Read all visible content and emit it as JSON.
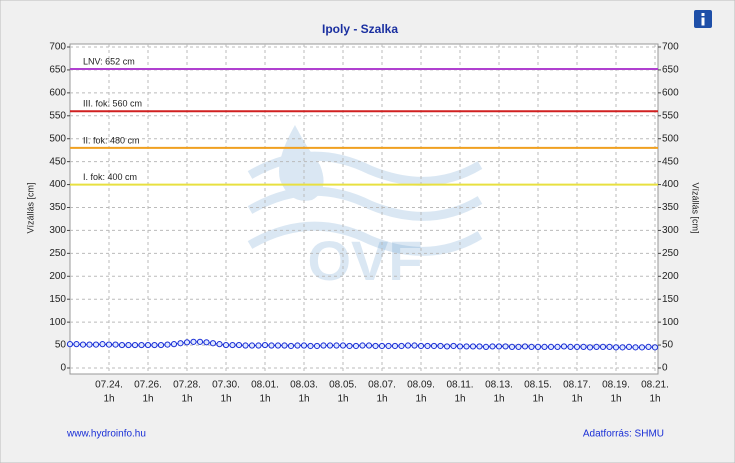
{
  "chart_data": {
    "type": "line",
    "title": "Ipoly - Szalka",
    "y_label": "Vízállás [cm]",
    "categories": [
      null,
      null,
      null,
      null,
      null,
      null,
      "07.24.",
      null,
      null,
      null,
      null,
      null,
      "07.26.",
      null,
      null,
      null,
      null,
      null,
      "07.28.",
      null,
      null,
      null,
      null,
      null,
      "07.30.",
      null,
      null,
      null,
      null,
      null,
      "08.01.",
      null,
      null,
      null,
      null,
      null,
      "08.03.",
      null,
      null,
      null,
      null,
      null,
      "08.05.",
      null,
      null,
      null,
      null,
      null,
      "08.07.",
      null,
      null,
      null,
      null,
      null,
      "08.09.",
      null,
      null,
      null,
      null,
      null,
      "08.11.",
      null,
      null,
      null,
      null,
      null,
      "08.13.",
      null,
      null,
      null,
      null,
      null,
      "08.15.",
      null,
      null,
      null,
      null,
      null,
      "08.17.",
      null,
      null,
      null,
      null,
      null,
      "08.19.",
      null,
      null,
      null,
      null,
      null,
      "08.21."
    ],
    "x_sublabel": "1h",
    "series": [
      {
        "color": "#1a2fd6",
        "values": [
          52,
          52,
          51,
          51,
          51,
          52,
          51,
          51,
          50,
          50,
          50,
          50,
          50,
          50,
          50,
          51,
          52,
          54,
          56,
          57,
          57,
          56,
          54,
          52,
          50,
          50,
          50,
          49,
          49,
          49,
          50,
          49,
          49,
          49,
          48,
          49,
          49,
          48,
          48,
          49,
          49,
          49,
          49,
          48,
          48,
          49,
          49,
          48,
          48,
          48,
          48,
          48,
          49,
          49,
          48,
          48,
          48,
          48,
          47,
          48,
          47,
          47,
          47,
          47,
          46,
          47,
          47,
          47,
          46,
          46,
          47,
          46,
          46,
          46,
          46,
          46,
          47,
          46,
          46,
          46,
          45,
          46,
          46,
          46,
          45,
          45,
          46,
          45,
          45,
          46,
          45
        ]
      }
    ],
    "thresholds": [
      {
        "label": "LNV: 652 cm",
        "value": 652,
        "color": "#b040d0"
      },
      {
        "label": "III. fok: 560 cm",
        "value": 560,
        "color": "#d02020"
      },
      {
        "label": "II. fok: 480 cm",
        "value": 480,
        "color": "#f0a020"
      },
      {
        "label": "I. fok: 400 cm",
        "value": 400,
        "color": "#e8e040"
      }
    ],
    "ylim": [
      0,
      700
    ],
    "yticks": [
      0,
      50,
      100,
      150,
      200,
      250,
      300,
      350,
      400,
      450,
      500,
      550,
      600,
      650,
      700
    ],
    "grid": true,
    "watermark": "OVF",
    "footer_left": "www.hydroinfo.hu",
    "footer_right": "Adatforrás: SHMU"
  }
}
